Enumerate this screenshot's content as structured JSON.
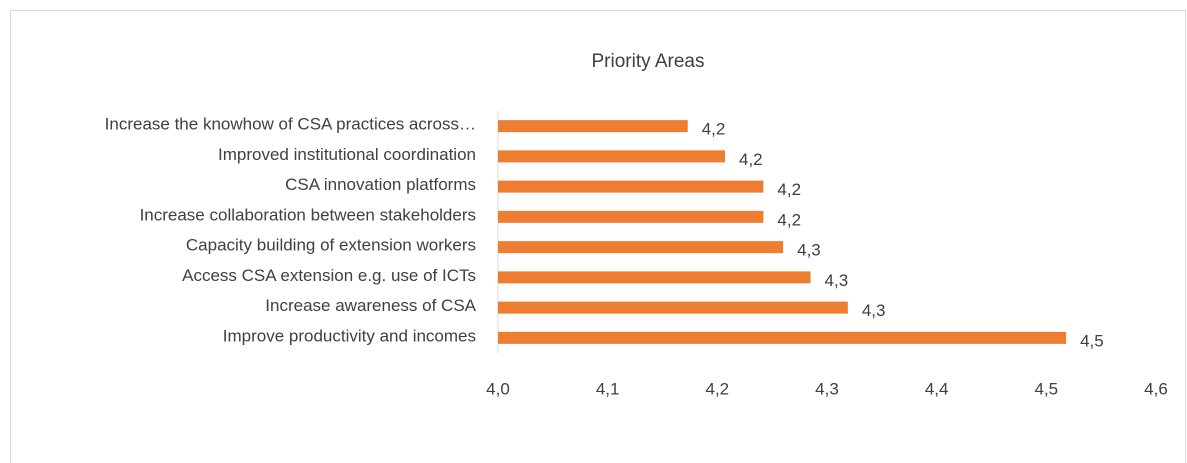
{
  "chart_data": {
    "type": "bar",
    "orientation": "horizontal",
    "title": "Priority Areas",
    "categories": [
      "Increase the knowhow of CSA practices across…",
      "Improved institutional coordination",
      "CSA innovation platforms",
      "Increase collaboration between stakeholders",
      "Capacity building of extension workers",
      "Access CSA extension e.g. use of ICTs",
      "Increase awareness of CSA",
      "Improve productivity and incomes"
    ],
    "values": [
      4.173,
      4.207,
      4.242,
      4.242,
      4.26,
      4.285,
      4.319,
      4.518
    ],
    "value_labels": [
      "4,2",
      "4,2",
      "4,2",
      "4,2",
      "4,3",
      "4,3",
      "4,3",
      "4,5"
    ],
    "color": "#ed7d31",
    "xlim": [
      4.0,
      4.6
    ],
    "xticks": [
      {
        "value": 4.0,
        "label": "4,0"
      },
      {
        "value": 4.1,
        "label": "4,1"
      },
      {
        "value": 4.2,
        "label": "4,2"
      },
      {
        "value": 4.3,
        "label": "4,3"
      },
      {
        "value": 4.4,
        "label": "4,4"
      },
      {
        "value": 4.5,
        "label": "4,5"
      },
      {
        "value": 4.6,
        "label": "4,6"
      }
    ],
    "grid": false
  }
}
